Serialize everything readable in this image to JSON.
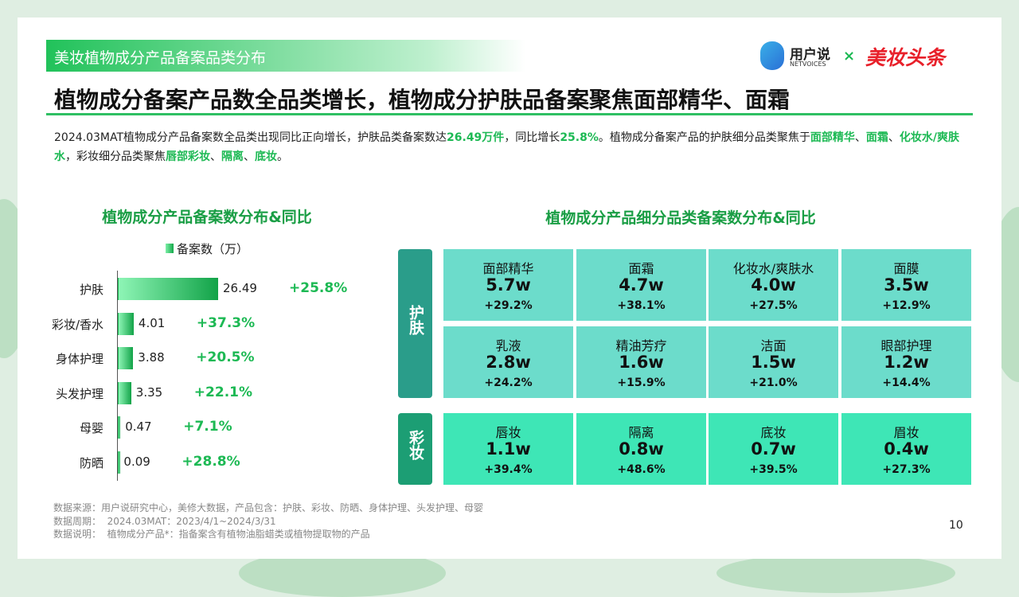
{
  "header": {
    "banner": "美妆植物成分产品备案品类分布",
    "logo_main": "用户说",
    "logo_sub": "NETVOICES",
    "cross": "×",
    "logo_partner": "美妆头条",
    "title": "植物成分备案产品数全品类增长，植物成分护肤品备案聚焦面部精华、面霜"
  },
  "intro": [
    {
      "text": "2024.03MAT植物成分产品备案数全品类出现同比正向增长，护肤品类备案数达",
      "bold": false
    },
    {
      "text": "26.49万件",
      "bold": true
    },
    {
      "text": "，同比增长",
      "bold": false
    },
    {
      "text": "25.8%",
      "bold": true
    },
    {
      "text": "。植物成分备案产品的护肤细分品类聚焦于",
      "bold": false
    },
    {
      "text": "面部精华",
      "bold": true
    },
    {
      "text": "、",
      "bold": false
    },
    {
      "text": "面霜",
      "bold": true
    },
    {
      "text": "、",
      "bold": false
    },
    {
      "text": "化妆水/爽肤水",
      "bold": true
    },
    {
      "text": "，彩妆细分品类聚焦",
      "bold": false
    },
    {
      "text": "唇部彩妆",
      "bold": true
    },
    {
      "text": "、",
      "bold": false
    },
    {
      "text": "隔离",
      "bold": true
    },
    {
      "text": "、",
      "bold": false
    },
    {
      "text": "底妆",
      "bold": true
    },
    {
      "text": "。",
      "bold": false
    }
  ],
  "chart_data": {
    "type": "bar",
    "orientation": "horizontal",
    "title": "植物成分产品备案数分布&同比",
    "categories": [
      "护肤",
      "彩妆/香水",
      "身体护理",
      "头发护理",
      "母婴",
      "防晒"
    ],
    "series": [
      {
        "name": "备案数（万）",
        "color": "#1db954",
        "values": [
          26.49,
          4.01,
          3.88,
          3.35,
          0.47,
          0.09
        ]
      }
    ],
    "growth_labels": [
      "+25.8%",
      "+37.3%",
      "+20.5%",
      "+22.1%",
      "+7.1%",
      "+28.8%"
    ]
  },
  "grid": {
    "title": "植物成分产品细分品类备案数分布&同比",
    "sections": [
      {
        "label": "护肤",
        "tiles": [
          {
            "name": "面部精华",
            "count": "5.7w",
            "growth": "+29.2%"
          },
          {
            "name": "面霜",
            "count": "4.7w",
            "growth": "+38.1%"
          },
          {
            "name": "化妆水/爽肤水",
            "count": "4.0w",
            "growth": "+27.5%"
          },
          {
            "name": "面膜",
            "count": "3.5w",
            "growth": "+12.9%"
          },
          {
            "name": "乳液",
            "count": "2.8w",
            "growth": "+24.2%"
          },
          {
            "name": "精油芳疗",
            "count": "1.6w",
            "growth": "+15.9%"
          },
          {
            "name": "洁面",
            "count": "1.5w",
            "growth": "+21.0%"
          },
          {
            "name": "眼部护理",
            "count": "1.2w",
            "growth": "+14.4%"
          }
        ]
      },
      {
        "label": "彩妆",
        "tiles": [
          {
            "name": "唇妆",
            "count": "1.1w",
            "growth": "+39.4%"
          },
          {
            "name": "隔离",
            "count": "0.8w",
            "growth": "+48.6%"
          },
          {
            "name": "底妆",
            "count": "0.7w",
            "growth": "+39.5%"
          },
          {
            "name": "眉妆",
            "count": "0.4w",
            "growth": "+27.3%"
          }
        ]
      }
    ]
  },
  "footer": [
    "数据来源：用户说研究中心，美修大数据，产品包含：护肤、彩妆、防晒、身体护理、头发护理、母婴",
    "数据周期：  2024.03MAT：2023/4/1~2024/3/31",
    "数据说明：  植物成分产品*：指备案含有植物油脂蜡类或植物提取物的产品"
  ],
  "page_number": "10"
}
